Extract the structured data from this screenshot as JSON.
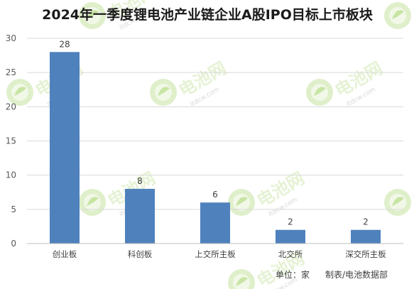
{
  "chart_data": {
    "type": "bar",
    "title": "2024年一季度锂电池产业链企业A股IPO目标上市板块",
    "categories": [
      "创业板",
      "科创板",
      "上交所主板",
      "北交所",
      "深交所主板"
    ],
    "series": [
      {
        "values": [
          28,
          8,
          6,
          2,
          2
        ]
      }
    ],
    "xlabel": "",
    "ylabel": "",
    "ylim": [
      0,
      30
    ],
    "yticks": [
      0,
      5,
      10,
      15,
      20,
      25,
      30
    ],
    "grid": true,
    "data_labels": true,
    "bar_color": "#4f81bd"
  },
  "footer": {
    "unit_label": "单位：家",
    "source_label": "制表/电池数据部"
  },
  "colors": {
    "bar": "#4f81bd",
    "grid": "#d9d9d9",
    "axis": "#bfbfbf",
    "watermark": "#8cc63f"
  },
  "watermark": {
    "brand": "电池网",
    "site": "itdcw.com"
  }
}
